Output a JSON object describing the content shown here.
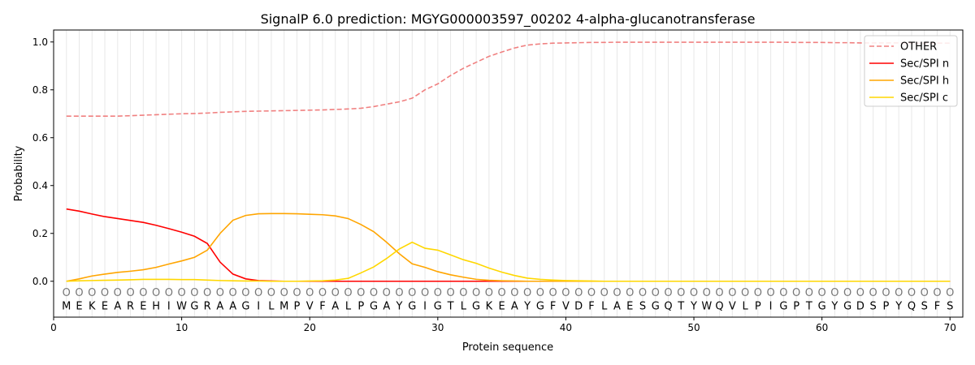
{
  "chart_data": {
    "type": "line",
    "title": "SignalP 6.0 prediction: MGYG000003597_00202 4-alpha-glucanotransferase",
    "xlabel": "Protein sequence",
    "ylabel": "Probability",
    "xlim": [
      0,
      71
    ],
    "ylim": [
      -0.15,
      1.05
    ],
    "xticks": [
      0,
      10,
      20,
      30,
      40,
      50,
      60,
      70
    ],
    "yticks": [
      0.0,
      0.2,
      0.4,
      0.6,
      0.8,
      1.0
    ],
    "legend_position": "top-right",
    "grid": "vertical lines at each residue",
    "sequence": [
      "M",
      "E",
      "K",
      "E",
      "A",
      "R",
      "E",
      "H",
      "I",
      "W",
      "G",
      "R",
      "A",
      "A",
      "G",
      "I",
      "L",
      "M",
      "P",
      "V",
      "F",
      "A",
      "L",
      "P",
      "G",
      "A",
      "Y",
      "G",
      "I",
      "G",
      "T",
      "L",
      "G",
      "K",
      "E",
      "A",
      "Y",
      "G",
      "F",
      "V",
      "D",
      "F",
      "L",
      "A",
      "E",
      "S",
      "G",
      "Q",
      "T",
      "Y",
      "W",
      "Q",
      "V",
      "L",
      "P",
      "I",
      "G",
      "P",
      "T",
      "G",
      "Y",
      "G",
      "D",
      "S",
      "P",
      "Y",
      "Q",
      "S",
      "F",
      "S"
    ],
    "position_marker": "O",
    "series": [
      {
        "name": "OTHER",
        "color": "#f08080",
        "dash": true,
        "values": [
          0.69,
          0.69,
          0.69,
          0.69,
          0.69,
          0.692,
          0.694,
          0.696,
          0.698,
          0.7,
          0.701,
          0.703,
          0.706,
          0.708,
          0.71,
          0.711,
          0.712,
          0.713,
          0.714,
          0.715,
          0.716,
          0.718,
          0.72,
          0.723,
          0.73,
          0.74,
          0.75,
          0.765,
          0.8,
          0.825,
          0.86,
          0.89,
          0.915,
          0.94,
          0.958,
          0.975,
          0.987,
          0.992,
          0.995,
          0.996,
          0.997,
          0.998,
          0.998,
          0.999,
          0.999,
          0.999,
          0.999,
          0.999,
          0.999,
          0.999,
          0.999,
          0.999,
          0.999,
          0.999,
          0.999,
          0.999,
          0.999,
          0.998,
          0.998,
          0.998,
          0.997,
          0.997,
          0.996,
          0.996,
          0.996,
          0.996,
          0.995,
          0.995,
          0.995,
          0.995
        ]
      },
      {
        "name": "Sec/SPI n",
        "color": "#ff0000",
        "values": [
          0.302,
          0.293,
          0.281,
          0.27,
          0.262,
          0.254,
          0.246,
          0.234,
          0.22,
          0.205,
          0.188,
          0.158,
          0.08,
          0.03,
          0.01,
          0.003,
          0.001,
          0,
          0,
          0,
          0,
          0,
          0,
          0,
          0,
          0,
          0,
          0,
          0,
          0,
          0,
          0,
          0,
          0,
          0,
          0,
          0,
          0,
          0,
          0,
          0,
          0,
          0,
          0,
          0,
          0,
          0,
          0,
          0,
          0,
          0,
          0,
          0,
          0,
          0,
          0,
          0,
          0,
          0,
          0,
          0,
          0,
          0,
          0,
          0,
          0,
          0,
          0,
          0,
          0
        ]
      },
      {
        "name": "Sec/SPI h",
        "color": "#ffa500",
        "values": [
          0,
          0.01,
          0.022,
          0.03,
          0.037,
          0.042,
          0.048,
          0.058,
          0.072,
          0.085,
          0.1,
          0.13,
          0.2,
          0.255,
          0.275,
          0.282,
          0.283,
          0.283,
          0.282,
          0.28,
          0.278,
          0.273,
          0.262,
          0.237,
          0.207,
          0.163,
          0.115,
          0.073,
          0.058,
          0.04,
          0.027,
          0.017,
          0.008,
          0.004,
          0.002,
          0.001,
          0,
          0,
          0,
          0,
          0,
          0,
          0,
          0,
          0,
          0,
          0,
          0,
          0,
          0,
          0,
          0,
          0,
          0,
          0,
          0,
          0,
          0,
          0,
          0,
          0,
          0,
          0,
          0,
          0,
          0,
          0,
          0,
          0,
          0
        ]
      },
      {
        "name": "Sec/SPI c",
        "color": "#ffd700",
        "values": [
          0,
          0.002,
          0.003,
          0.004,
          0.005,
          0.006,
          0.008,
          0.008,
          0.008,
          0.007,
          0.007,
          0.005,
          0.003,
          0.002,
          0.001,
          0.001,
          0,
          0,
          0,
          0.001,
          0.002,
          0.005,
          0.012,
          0.035,
          0.06,
          0.095,
          0.135,
          0.163,
          0.138,
          0.13,
          0.11,
          0.09,
          0.075,
          0.055,
          0.038,
          0.024,
          0.013,
          0.008,
          0.005,
          0.003,
          0.002,
          0.001,
          0,
          0,
          0,
          0,
          0,
          0,
          0,
          0,
          0,
          0,
          0,
          0,
          0,
          0,
          0,
          0,
          0,
          0,
          0,
          0,
          0,
          0,
          0,
          0,
          0,
          0,
          0,
          0
        ]
      }
    ]
  }
}
